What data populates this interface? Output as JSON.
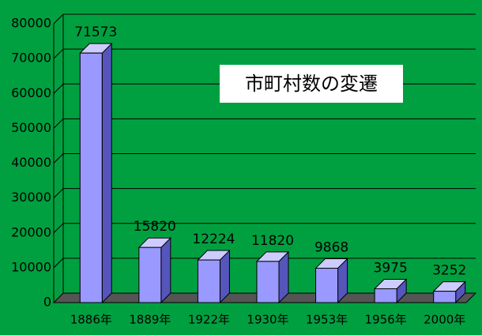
{
  "chart_data": {
    "type": "bar3d",
    "title": "市町村数の変遷",
    "categories": [
      "1886年",
      "1889年",
      "1922年",
      "1930年",
      "1953年",
      "1956年",
      "2000年"
    ],
    "values": [
      71573,
      15820,
      12224,
      11820,
      9868,
      3975,
      3252
    ],
    "color": "#9999ff",
    "ylim": [
      0,
      80000
    ],
    "yticks": [
      0,
      10000,
      20000,
      30000,
      40000,
      50000,
      60000,
      70000,
      80000
    ],
    "grid": true
  }
}
